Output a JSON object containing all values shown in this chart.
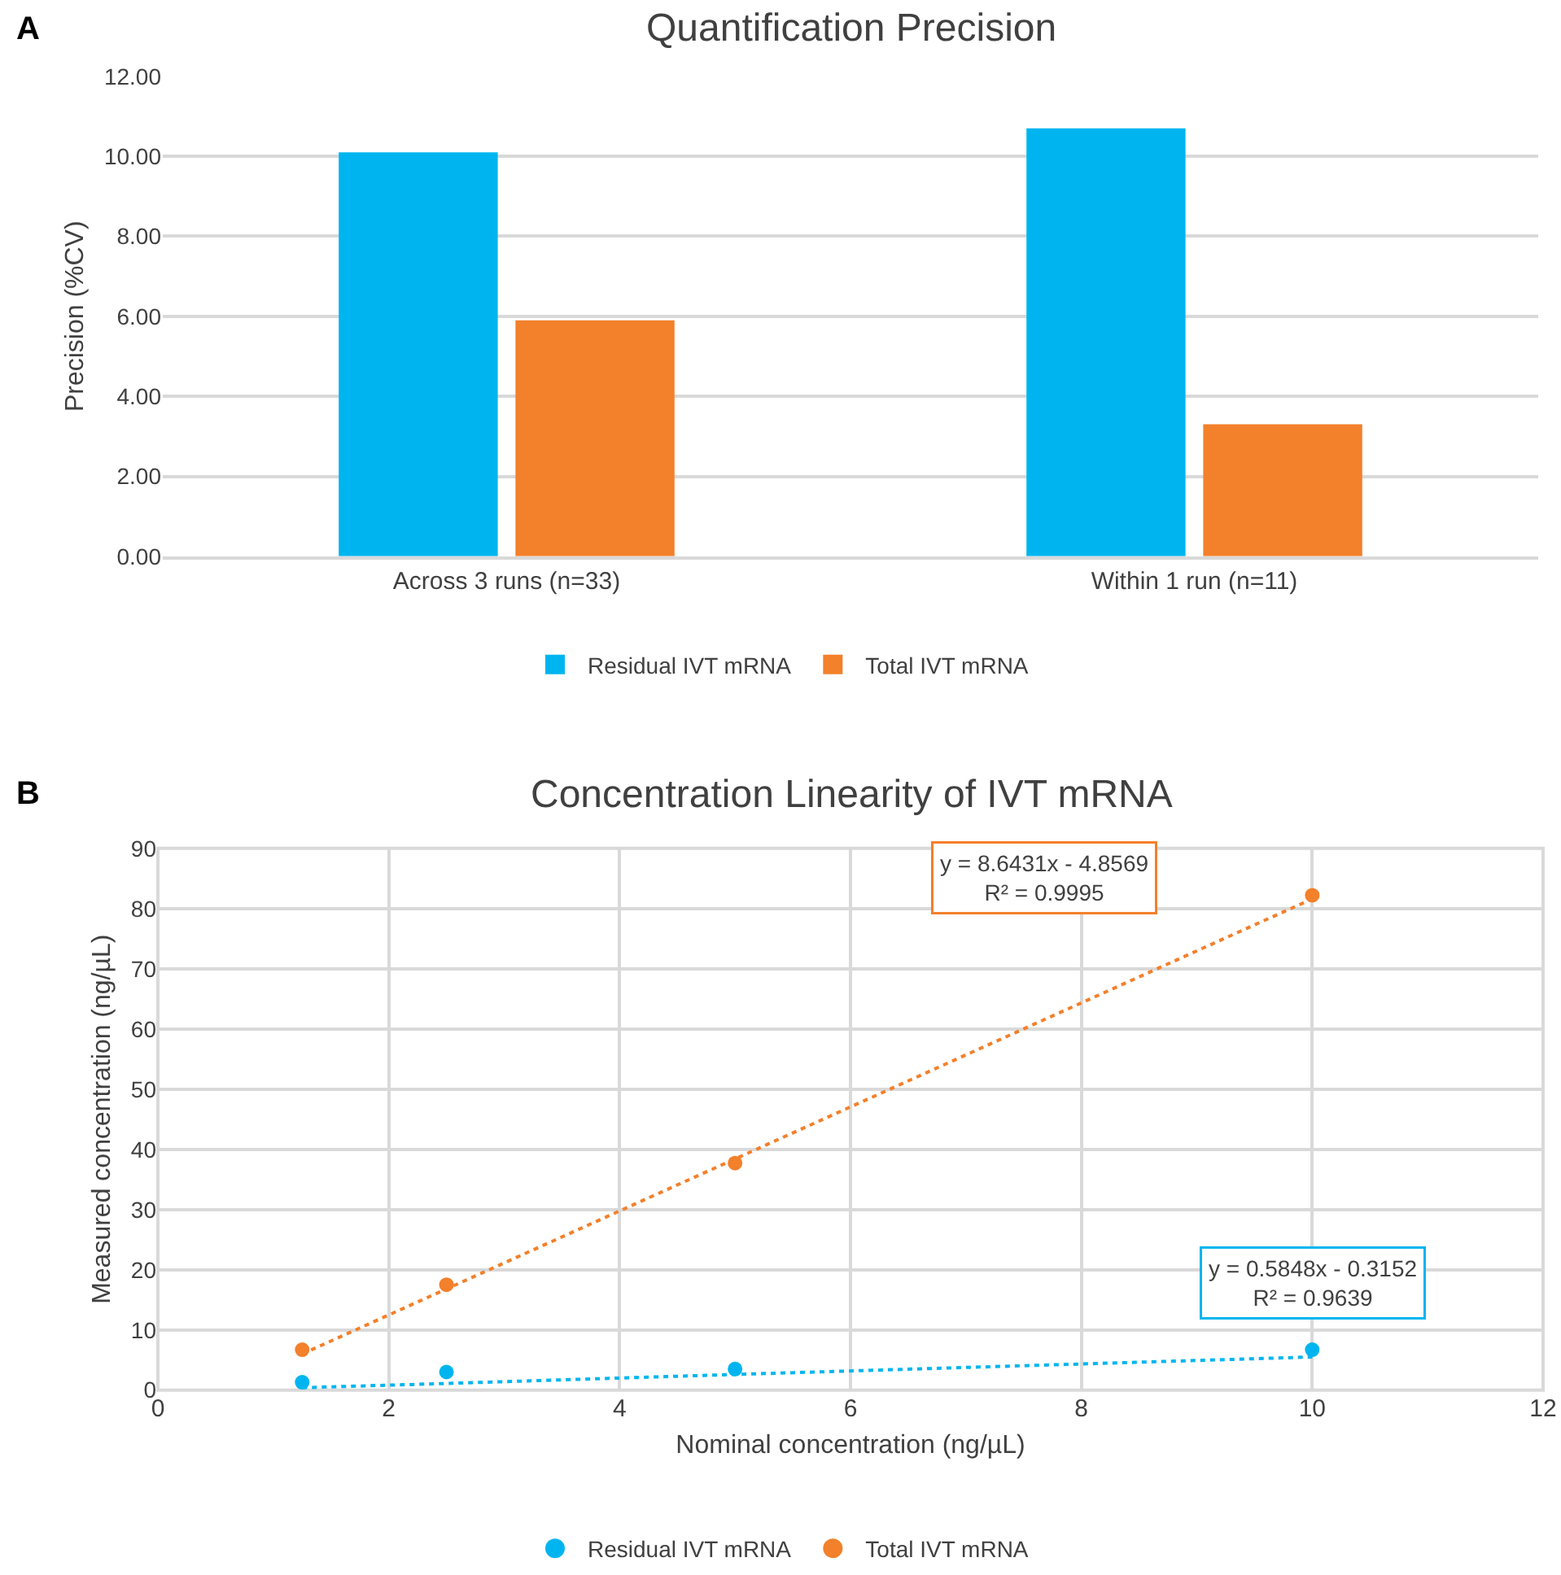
{
  "chart_data": [
    {
      "type": "bar",
      "title": "Quantification Precision",
      "ylabel": "Precision (%CV)",
      "annotations": [
        "A"
      ],
      "categories": [
        "Across 3 runs (n=33)",
        "Within 1 run (n=11)"
      ],
      "series": [
        {
          "name": "Residual IVT mRNA",
          "color": "#00b5ef",
          "values": [
            10.1,
            10.7
          ]
        },
        {
          "name": "Total IVT mRNA",
          "color": "#f3802b",
          "values": [
            5.9,
            3.3
          ]
        }
      ],
      "ylim": [
        0,
        12
      ],
      "yticks": [
        {
          "value": 0,
          "label": "0.00"
        },
        {
          "value": 2,
          "label": "2.00"
        },
        {
          "value": 4,
          "label": "4.00"
        },
        {
          "value": 6,
          "label": "6.00"
        },
        {
          "value": 8,
          "label": "8.00"
        },
        {
          "value": 10,
          "label": "10.00"
        },
        {
          "value": 12,
          "label": "12.00"
        }
      ],
      "grid": "y",
      "legend": "bottom"
    },
    {
      "type": "scatter",
      "title": "Concentration Linearity of IVT mRNA",
      "xlabel": "Nominal concentration (ng/µL)",
      "ylabel": "Measured concentration (ng/µL)",
      "annotations": [
        "B",
        "y = 8.6431x - 4.8569\nR² = 0.9995",
        "y = 0.5848x - 0.3152\nR² = 0.9639"
      ],
      "x": [
        1.25,
        2.5,
        5,
        10
      ],
      "series": [
        {
          "name": "Residual IVT mRNA",
          "color": "#00b5ef",
          "values": [
            1.3,
            3.0,
            3.5,
            6.7
          ],
          "marker": "circle"
        },
        {
          "name": "Total IVT mRNA",
          "color": "#f3802b",
          "values": [
            6.7,
            17.5,
            37.7,
            82.2
          ],
          "marker": "circle"
        },
        {
          "type": "line",
          "color": "#f3802b",
          "values": [
            6.0,
            16.8,
            38.4,
            81.6
          ],
          "line_style": "dotted"
        },
        {
          "type": "line",
          "color": "#00b5ef",
          "values": [
            0.4,
            1.1,
            2.6,
            5.5
          ],
          "line_style": "dotted"
        }
      ],
      "xlim": [
        0,
        12
      ],
      "xticks": [
        0,
        2,
        4,
        6,
        8,
        10,
        12
      ],
      "ylim": [
        0,
        90
      ],
      "yticks": [
        0,
        10,
        20,
        30,
        40,
        50,
        60,
        70,
        80,
        90
      ],
      "grid": true,
      "legend": "bottom"
    }
  ]
}
